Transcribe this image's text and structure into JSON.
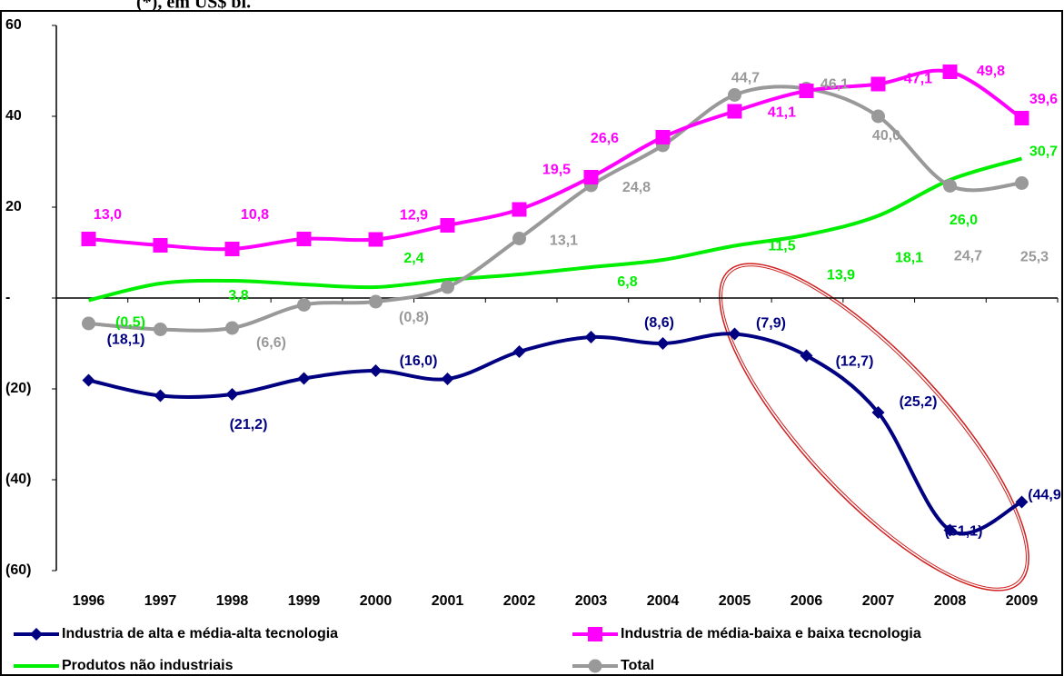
{
  "chart_data": {
    "type": "line",
    "title": "(*), em US$ bi.",
    "categories": [
      "1996",
      "1997",
      "1998",
      "1999",
      "2000",
      "2001",
      "2002",
      "2003",
      "2004",
      "2005",
      "2006",
      "2007",
      "2008",
      "2009"
    ],
    "ylim": [
      -60,
      60
    ],
    "yticks": [
      {
        "value": -60,
        "label": "(60)"
      },
      {
        "value": -40,
        "label": "(40)"
      },
      {
        "value": -20,
        "label": "(20)"
      },
      {
        "value": 0,
        "label": "-"
      },
      20,
      40,
      60
    ],
    "series": [
      {
        "name": "Industria de alta e média-alta tecnologia",
        "color": "#000080",
        "marker": "diamond",
        "values": [
          -18.1,
          -21.5,
          -21.2,
          -17.7,
          -16.0,
          -17.8,
          -11.8,
          -8.6,
          -10.0,
          -7.9,
          -12.7,
          -25.2,
          -51.1,
          -44.9
        ],
        "value_labels": [
          "(18,1)",
          null,
          "(21,2)",
          null,
          "(16,0)",
          null,
          null,
          "(8,6)",
          null,
          "(7,9)",
          "(12,7)",
          "(25,2)",
          "(51,1)",
          "(44,9"
        ]
      },
      {
        "name": "Industria de média-baixa e baixa tecnologia",
        "color": "#ff00ff",
        "marker": "square",
        "values": [
          13.0,
          11.6,
          10.8,
          13.0,
          12.9,
          16.0,
          19.5,
          26.6,
          35.4,
          41.1,
          45.6,
          47.1,
          49.8,
          39.6
        ],
        "value_labels": [
          "13,0",
          null,
          "10,8",
          null,
          "12,9",
          null,
          "19,5",
          "26,6",
          null,
          "41,1",
          null,
          "47,1",
          "49,8",
          "39,6"
        ]
      },
      {
        "name": "Produtos não industriais",
        "color": "#00ee00",
        "marker": "none",
        "values": [
          -0.5,
          3.2,
          3.8,
          3.0,
          2.4,
          4.0,
          5.2,
          6.8,
          8.4,
          11.5,
          13.9,
          18.1,
          26.0,
          30.7
        ],
        "value_labels": [
          "(0,5)",
          null,
          "3,8",
          null,
          "2,4",
          null,
          null,
          "6,8",
          null,
          "11,5",
          "13,9",
          "18,1",
          "26,0",
          "30,7"
        ]
      },
      {
        "name": "Total",
        "color": "#999999",
        "marker": "circle",
        "values": [
          -5.6,
          -6.9,
          -6.6,
          -1.5,
          -0.8,
          2.4,
          13.1,
          24.8,
          33.6,
          44.7,
          46.1,
          40.0,
          24.7,
          25.3
        ],
        "value_labels": [
          null,
          null,
          "(6,6)",
          null,
          "(0,8)",
          null,
          "13,1",
          "24,8",
          null,
          "44,7",
          "46,1",
          "40,0",
          "24,7",
          "25,3"
        ]
      }
    ]
  }
}
